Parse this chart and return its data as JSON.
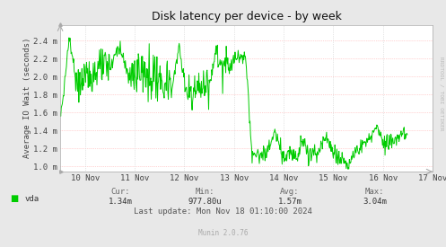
{
  "title": "Disk latency per device - by week",
  "ylabel": "Average IO Wait (seconds)",
  "background_color": "#e8e8e8",
  "plot_bg_color": "#ffffff",
  "line_color": "#00cc00",
  "grid_color_h": "#ffaaaa",
  "grid_color_v": "#cccccc",
  "watermark": "RRDTOOL / TOBI OETIKER",
  "munin_version": "Munin 2.0.76",
  "legend_label": "vda",
  "legend_color": "#00cc00",
  "stats_cur": "1.34m",
  "stats_min": "977.80u",
  "stats_avg": "1.57m",
  "stats_max": "3.04m",
  "last_update": "Last update: Mon Nov 18 01:10:00 2024",
  "x_tick_labels": [
    "10 Nov",
    "11 Nov",
    "12 Nov",
    "13 Nov",
    "14 Nov",
    "15 Nov",
    "16 Nov",
    "17 Nov"
  ],
  "y_tick_labels": [
    "1.0 m",
    "1.2 m",
    "1.4 m",
    "1.6 m",
    "1.8 m",
    "2.0 m",
    "2.2 m",
    "2.4 m"
  ],
  "y_tick_values": [
    1.0,
    1.2,
    1.4,
    1.6,
    1.8,
    2.0,
    2.2,
    2.4
  ],
  "ylim": [
    0.94,
    2.58
  ],
  "xlim": [
    0,
    672
  ]
}
